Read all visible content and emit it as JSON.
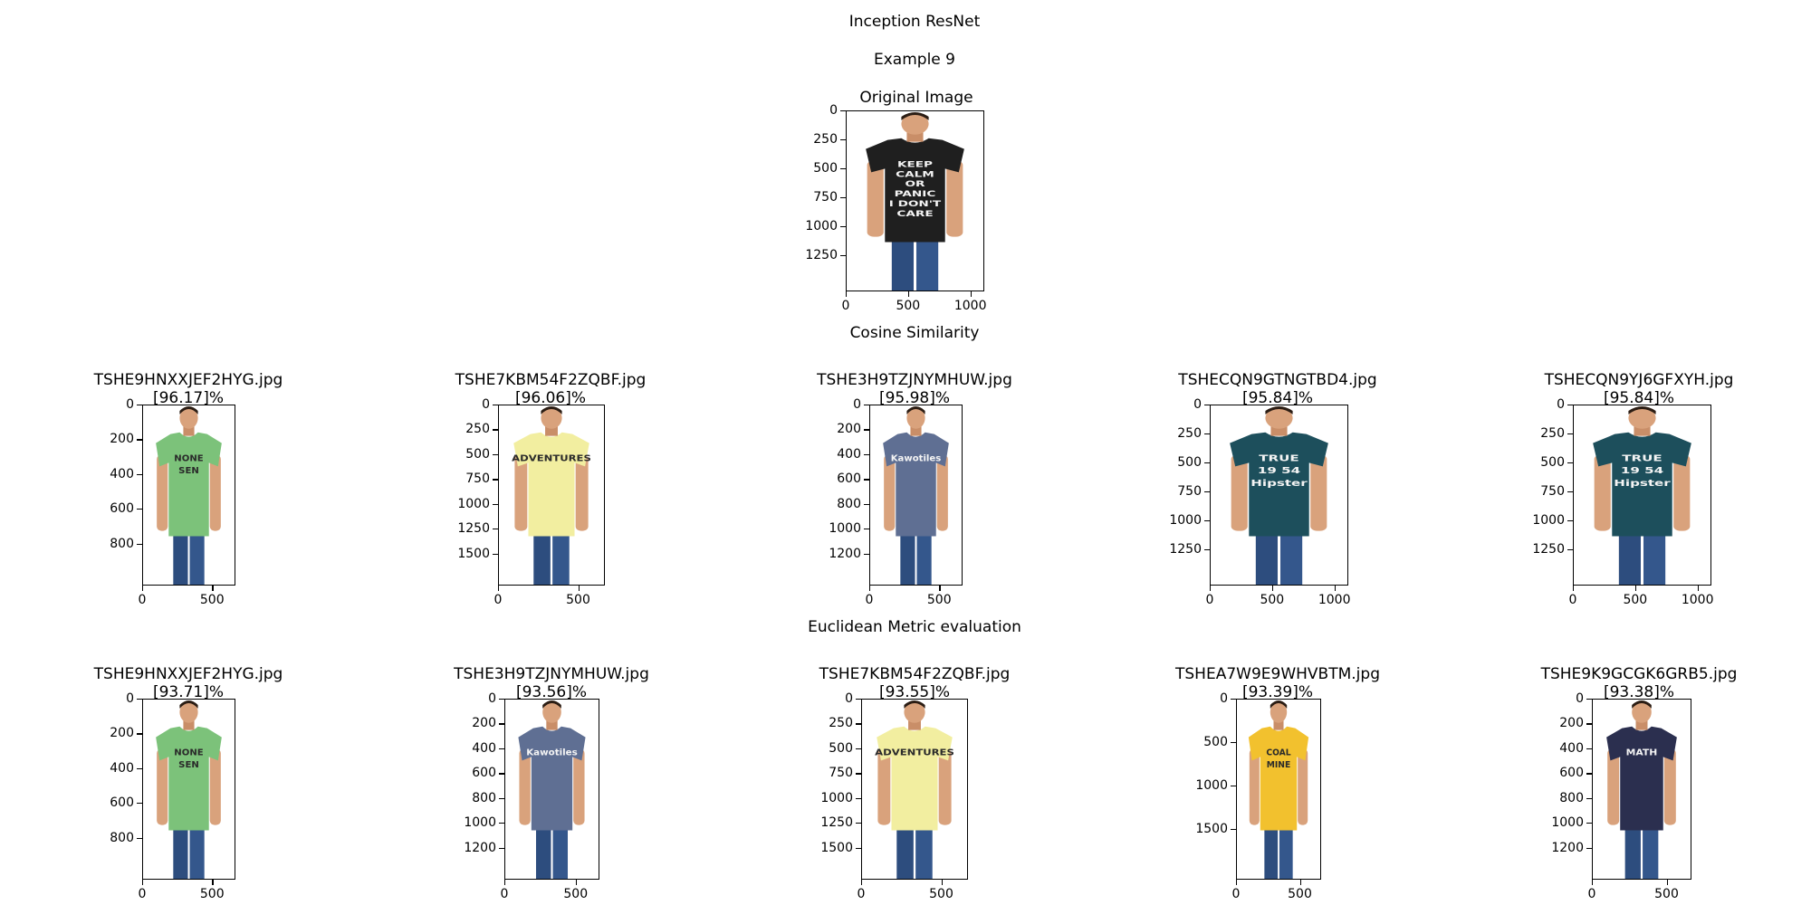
{
  "title": "Inception ResNet",
  "subtitle": "Example 9",
  "original": {
    "title": "Original Image",
    "shirt_color": "#1f1f1f",
    "print_lines": [
      "KEEP",
      "CALM",
      "OR",
      "PANIC",
      "I DON'T",
      "CARE"
    ],
    "yticks": [
      "0",
      "250",
      "500",
      "750",
      "1000",
      "1250"
    ],
    "xticks": [
      "0",
      "500",
      "1000"
    ]
  },
  "cosine": {
    "heading": "Cosine Similarity",
    "results": [
      {
        "file": "TSHE9HNXXJEF2HYG.jpg",
        "score": "[96.17]%",
        "shirt_color": "#7cc27a",
        "print_lines": [
          "NONE",
          "SEN"
        ],
        "yticks": [
          "0",
          "200",
          "400",
          "600",
          "800"
        ],
        "xticks": [
          "0",
          "500"
        ]
      },
      {
        "file": "TSHE7KBM54F2ZQBF.jpg",
        "score": "[96.06]%",
        "shirt_color": "#f2eea0",
        "print_lines": [
          "ADVENTURES"
        ],
        "yticks": [
          "0",
          "250",
          "500",
          "750",
          "1000",
          "1250",
          "1500"
        ],
        "xticks": [
          "0",
          "500"
        ]
      },
      {
        "file": "TSHE3H9TZJNYMHUW.jpg",
        "score": "[95.98]%",
        "shirt_color": "#5f6f93",
        "print_lines": [
          "Kawotiles"
        ],
        "yticks": [
          "0",
          "200",
          "400",
          "600",
          "800",
          "1000",
          "1200"
        ],
        "xticks": [
          "0",
          "500"
        ]
      },
      {
        "file": "TSHECQN9GTNGTBD4.jpg",
        "score": "[95.84]%",
        "shirt_color": "#1d4f5c",
        "print_lines": [
          "TRUE",
          "19  54",
          "Hipster"
        ],
        "yticks": [
          "0",
          "250",
          "500",
          "750",
          "1000",
          "1250"
        ],
        "xticks": [
          "0",
          "500",
          "1000"
        ]
      },
      {
        "file": "TSHECQN9YJ6GFXYH.jpg",
        "score": "[95.84]%",
        "shirt_color": "#1d4f5c",
        "print_lines": [
          "TRUE",
          "19  54",
          "Hipster"
        ],
        "yticks": [
          "0",
          "250",
          "500",
          "750",
          "1000",
          "1250"
        ],
        "xticks": [
          "0",
          "500",
          "1000"
        ]
      }
    ]
  },
  "euclidean": {
    "heading": "Euclidean Metric evaluation",
    "results": [
      {
        "file": "TSHE9HNXXJEF2HYG.jpg",
        "score": "[93.71]%",
        "shirt_color": "#7cc27a",
        "print_lines": [
          "NONE",
          "SEN"
        ],
        "yticks": [
          "0",
          "200",
          "400",
          "600",
          "800"
        ],
        "xticks": [
          "0",
          "500"
        ]
      },
      {
        "file": "TSHE3H9TZJNYMHUW.jpg",
        "score": "[93.56]%",
        "shirt_color": "#5f6f93",
        "print_lines": [
          "Kawotiles"
        ],
        "yticks": [
          "0",
          "200",
          "400",
          "600",
          "800",
          "1000",
          "1200"
        ],
        "xticks": [
          "0",
          "500"
        ]
      },
      {
        "file": "TSHE7KBM54F2ZQBF.jpg",
        "score": "[93.55]%",
        "shirt_color": "#f2eea0",
        "print_lines": [
          "ADVENTURES"
        ],
        "yticks": [
          "0",
          "250",
          "500",
          "750",
          "1000",
          "1250",
          "1500"
        ],
        "xticks": [
          "0",
          "500"
        ]
      },
      {
        "file": "TSHEA7W9E9WHVBTM.jpg",
        "score": "[93.39]%",
        "shirt_color": "#f2c12e",
        "print_lines": [
          "COAL",
          "MINE"
        ],
        "yticks": [
          "0",
          "500",
          "1000",
          "1500"
        ],
        "xticks": [
          "0",
          "500"
        ]
      },
      {
        "file": "TSHE9K9GCGK6GRB5.jpg",
        "score": "[93.38]%",
        "shirt_color": "#2b2f4f",
        "print_lines": [
          "MATH"
        ],
        "yticks": [
          "0",
          "200",
          "400",
          "600",
          "800",
          "1000",
          "1200"
        ],
        "xticks": [
          "0",
          "500"
        ]
      }
    ]
  }
}
